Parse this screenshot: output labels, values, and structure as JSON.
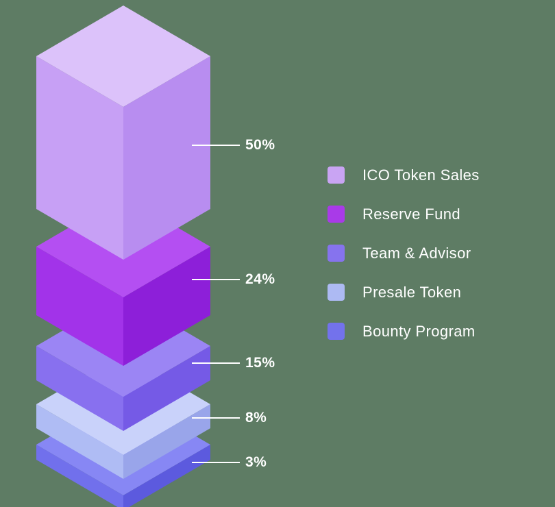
{
  "chart_data": {
    "type": "bar",
    "variant": "isometric-3d-stacked-allocation",
    "title": "",
    "categories": [
      "ICO Token Sales",
      "Reserve Fund",
      "Team & Advisor",
      "Presale Token",
      "Bounty Program"
    ],
    "values": [
      50,
      24,
      15,
      8,
      3
    ],
    "unit": "%",
    "legend_position": "right",
    "background_color": "#5e7c64",
    "callout_line_color": "#ffffff",
    "callout_text_color": "#ffffff",
    "segments": [
      {
        "label": "ICO Token Sales",
        "value": 50,
        "value_label": "50%",
        "color_top": "#dcc2fa",
        "color_left": "#c7a0f5",
        "color_right": "#b88df0",
        "color_legend": "#c9a4f3"
      },
      {
        "label": "Reserve Fund",
        "value": 24,
        "value_label": "24%",
        "color_top": "#b44ff2",
        "color_left": "#a233e9",
        "color_right": "#8d1fd9",
        "color_legend": "#a93ae8"
      },
      {
        "label": "Team & Advisor",
        "value": 15,
        "value_label": "15%",
        "color_top": "#9b85f4",
        "color_left": "#8870ef",
        "color_right": "#755ae6",
        "color_legend": "#8673ee"
      },
      {
        "label": "Presale Token",
        "value": 8,
        "value_label": "8%",
        "color_top": "#c9d2fa",
        "color_left": "#afbcf4",
        "color_right": "#99a5ea",
        "color_legend": "#adbaf3"
      },
      {
        "label": "Bounty Program",
        "value": 3,
        "value_label": "3%",
        "color_top": "#8787f4",
        "color_left": "#7170ec",
        "color_right": "#5c5ade",
        "color_legend": "#7372ec"
      }
    ]
  }
}
